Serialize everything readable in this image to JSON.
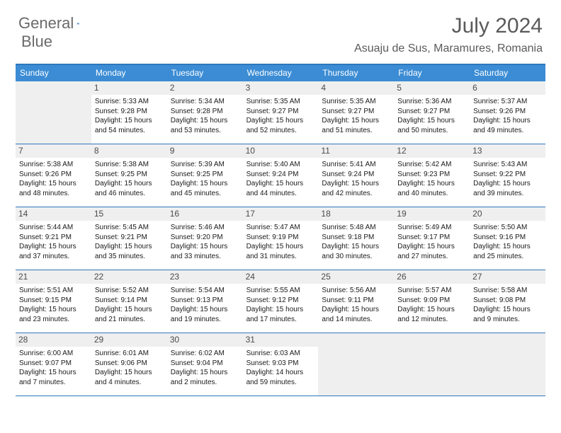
{
  "brand": {
    "word1": "General",
    "word2": "Blue",
    "logo_color": "#3b8cd4"
  },
  "title": "July 2024",
  "location": "Asuaju de Sus, Maramures, Romania",
  "colors": {
    "header_bar": "#3b8cd4",
    "divider": "#2d77bd",
    "shade": "#efefef",
    "text": "#1a1a1a",
    "muted": "#5a5a5a"
  },
  "daysOfWeek": [
    "Sunday",
    "Monday",
    "Tuesday",
    "Wednesday",
    "Thursday",
    "Friday",
    "Saturday"
  ],
  "weeks": [
    [
      null,
      {
        "n": "1",
        "sr": "5:33 AM",
        "ss": "9:28 PM",
        "dl": "15 hours and 54 minutes."
      },
      {
        "n": "2",
        "sr": "5:34 AM",
        "ss": "9:28 PM",
        "dl": "15 hours and 53 minutes."
      },
      {
        "n": "3",
        "sr": "5:35 AM",
        "ss": "9:27 PM",
        "dl": "15 hours and 52 minutes."
      },
      {
        "n": "4",
        "sr": "5:35 AM",
        "ss": "9:27 PM",
        "dl": "15 hours and 51 minutes."
      },
      {
        "n": "5",
        "sr": "5:36 AM",
        "ss": "9:27 PM",
        "dl": "15 hours and 50 minutes."
      },
      {
        "n": "6",
        "sr": "5:37 AM",
        "ss": "9:26 PM",
        "dl": "15 hours and 49 minutes."
      }
    ],
    [
      {
        "n": "7",
        "sr": "5:38 AM",
        "ss": "9:26 PM",
        "dl": "15 hours and 48 minutes."
      },
      {
        "n": "8",
        "sr": "5:38 AM",
        "ss": "9:25 PM",
        "dl": "15 hours and 46 minutes."
      },
      {
        "n": "9",
        "sr": "5:39 AM",
        "ss": "9:25 PM",
        "dl": "15 hours and 45 minutes."
      },
      {
        "n": "10",
        "sr": "5:40 AM",
        "ss": "9:24 PM",
        "dl": "15 hours and 44 minutes."
      },
      {
        "n": "11",
        "sr": "5:41 AM",
        "ss": "9:24 PM",
        "dl": "15 hours and 42 minutes."
      },
      {
        "n": "12",
        "sr": "5:42 AM",
        "ss": "9:23 PM",
        "dl": "15 hours and 40 minutes."
      },
      {
        "n": "13",
        "sr": "5:43 AM",
        "ss": "9:22 PM",
        "dl": "15 hours and 39 minutes."
      }
    ],
    [
      {
        "n": "14",
        "sr": "5:44 AM",
        "ss": "9:21 PM",
        "dl": "15 hours and 37 minutes."
      },
      {
        "n": "15",
        "sr": "5:45 AM",
        "ss": "9:21 PM",
        "dl": "15 hours and 35 minutes."
      },
      {
        "n": "16",
        "sr": "5:46 AM",
        "ss": "9:20 PM",
        "dl": "15 hours and 33 minutes."
      },
      {
        "n": "17",
        "sr": "5:47 AM",
        "ss": "9:19 PM",
        "dl": "15 hours and 31 minutes."
      },
      {
        "n": "18",
        "sr": "5:48 AM",
        "ss": "9:18 PM",
        "dl": "15 hours and 30 minutes."
      },
      {
        "n": "19",
        "sr": "5:49 AM",
        "ss": "9:17 PM",
        "dl": "15 hours and 27 minutes."
      },
      {
        "n": "20",
        "sr": "5:50 AM",
        "ss": "9:16 PM",
        "dl": "15 hours and 25 minutes."
      }
    ],
    [
      {
        "n": "21",
        "sr": "5:51 AM",
        "ss": "9:15 PM",
        "dl": "15 hours and 23 minutes."
      },
      {
        "n": "22",
        "sr": "5:52 AM",
        "ss": "9:14 PM",
        "dl": "15 hours and 21 minutes."
      },
      {
        "n": "23",
        "sr": "5:54 AM",
        "ss": "9:13 PM",
        "dl": "15 hours and 19 minutes."
      },
      {
        "n": "24",
        "sr": "5:55 AM",
        "ss": "9:12 PM",
        "dl": "15 hours and 17 minutes."
      },
      {
        "n": "25",
        "sr": "5:56 AM",
        "ss": "9:11 PM",
        "dl": "15 hours and 14 minutes."
      },
      {
        "n": "26",
        "sr": "5:57 AM",
        "ss": "9:09 PM",
        "dl": "15 hours and 12 minutes."
      },
      {
        "n": "27",
        "sr": "5:58 AM",
        "ss": "9:08 PM",
        "dl": "15 hours and 9 minutes."
      }
    ],
    [
      {
        "n": "28",
        "sr": "6:00 AM",
        "ss": "9:07 PM",
        "dl": "15 hours and 7 minutes."
      },
      {
        "n": "29",
        "sr": "6:01 AM",
        "ss": "9:06 PM",
        "dl": "15 hours and 4 minutes."
      },
      {
        "n": "30",
        "sr": "6:02 AM",
        "ss": "9:04 PM",
        "dl": "15 hours and 2 minutes."
      },
      {
        "n": "31",
        "sr": "6:03 AM",
        "ss": "9:03 PM",
        "dl": "14 hours and 59 minutes."
      },
      null,
      null,
      null
    ]
  ],
  "labels": {
    "sunrise": "Sunrise: ",
    "sunset": "Sunset: ",
    "daylight": "Daylight: "
  }
}
